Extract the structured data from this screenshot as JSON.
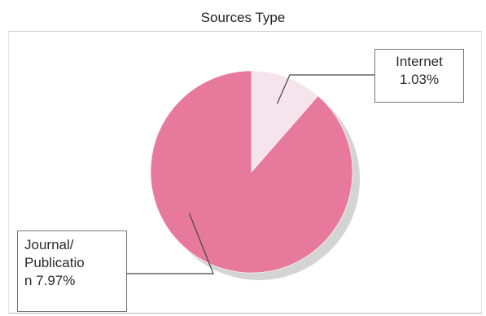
{
  "chart_data": {
    "type": "pie",
    "title": "Sources Type",
    "slices": [
      {
        "label": "Internet",
        "value": 1.03,
        "value_label": "1.03%",
        "color": "#f6e4ec"
      },
      {
        "label": "Journal/ Publication",
        "value": 7.97,
        "value_label": "7.97%",
        "color": "#e7799d"
      }
    ],
    "callouts": {
      "internet": {
        "line1": "Internet",
        "line2": "1.03%"
      },
      "journal": {
        "line1": "Journal/",
        "line2": "Publicatio",
        "line3": "n 7.97%"
      }
    },
    "legend": "none",
    "shadow_color": "#d4d4d4",
    "leader_color": "#444444"
  }
}
